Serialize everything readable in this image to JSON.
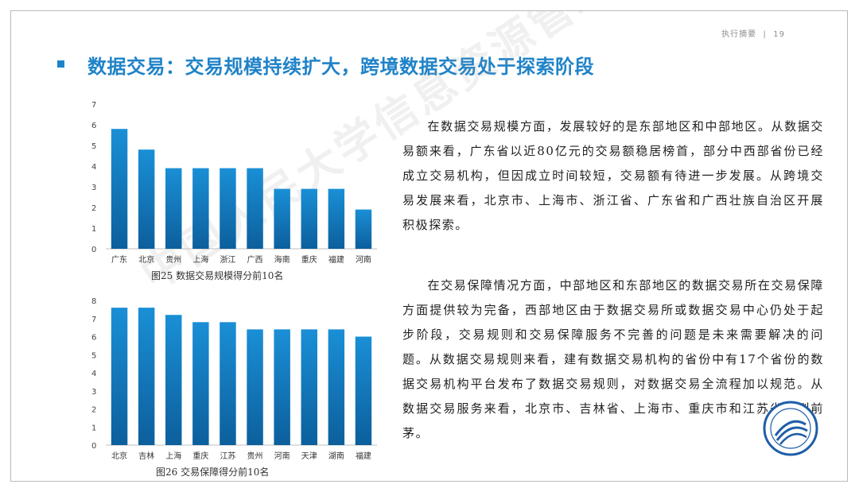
{
  "page": {
    "section": "执行摘要",
    "page_number": "19",
    "title": "数据交易：交易规模持续扩大，跨境数据交易处于探索阶段",
    "watermark": "中国人民大学信息资源管理学院",
    "paragraph_1": "在数据交易规模方面，发展较好的是东部地区和中部地区。从数据交易额来看，广东省以近80亿元的交易额稳居榜首，部分中西部省份已经成立交易机构，但因成立时间较短，交易额有待进一步发展。从跨境交易发展来看，北京市、上海市、浙江省、广东省和广西壮族自治区开展积极探索。",
    "paragraph_2": "在交易保障情况方面，中部地区和东部地区的数据交易所在交易保障方面提供较为完备，西部地区由于数据交易所或数据交易中心仍处于起步阶段，交易规则和交易保障服务不完善的问题是未来需要解决的问题。从数据交易规则来看，建有数据交易机构的省份中有17个省份的数据交易机构平台发布了数据交易规则，对数据交易全流程加以规范。从数据交易服务来看，北京市、吉林省、上海市、重庆市和江苏省名列前茅。",
    "colors": {
      "accent": "#1f83c8",
      "bar_top": "#1a8fd6",
      "bar_bottom": "#0c5f9c"
    },
    "logo_icon": "university-seal-icon"
  },
  "chart_data": [
    {
      "type": "bar",
      "title": "图25  数据交易规模得分前10名",
      "categories": [
        "广东",
        "北京",
        "贵州",
        "上海",
        "浙江",
        "广西",
        "海南",
        "重庆",
        "福建",
        "河南"
      ],
      "values": [
        5.8,
        4.8,
        3.9,
        3.9,
        3.9,
        3.9,
        2.9,
        2.9,
        2.9,
        1.9
      ],
      "ylim": [
        0,
        7
      ],
      "yticks": [
        "0",
        "1",
        "2",
        "3",
        "4",
        "5",
        "6",
        "7"
      ],
      "xlabel": "",
      "ylabel": "",
      "grid": false
    },
    {
      "type": "bar",
      "title": "图26  交易保障得分前10名",
      "categories": [
        "北京",
        "吉林",
        "上海",
        "重庆",
        "江苏",
        "贵州",
        "河南",
        "天津",
        "湖南",
        "福建"
      ],
      "values": [
        7.6,
        7.6,
        7.2,
        6.8,
        6.8,
        6.4,
        6.4,
        6.4,
        6.4,
        6.0
      ],
      "ylim": [
        0,
        8
      ],
      "yticks": [
        "0",
        "1",
        "2",
        "3",
        "4",
        "5",
        "6",
        "7",
        "8"
      ],
      "xlabel": "",
      "ylabel": "",
      "grid": false
    }
  ]
}
